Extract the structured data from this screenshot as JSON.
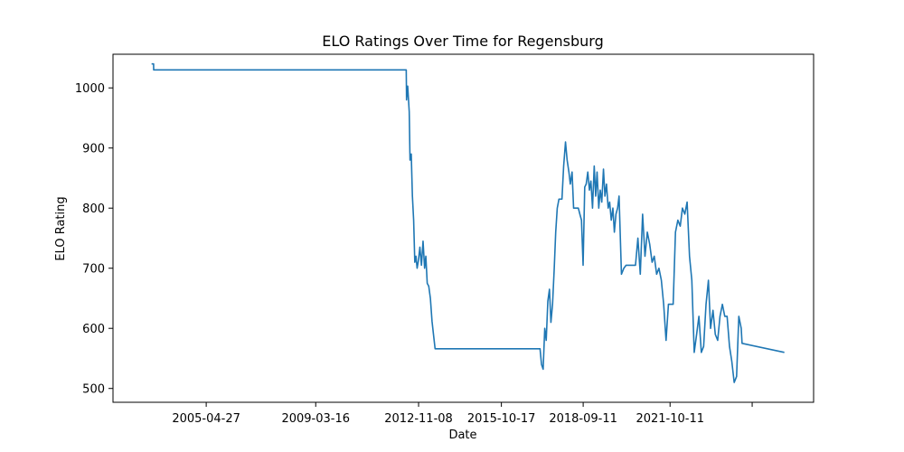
{
  "chart_data": {
    "type": "line",
    "title": "ELO Ratings Over Time for Regensburg",
    "xlabel": "Date",
    "ylabel": "ELO Rating",
    "x_ticks": [
      "2005-04-27",
      "2009-03-16",
      "2012-11-08",
      "2015-10-17",
      "2018-09-11",
      "2021-10-11",
      ""
    ],
    "x_tick_dates": [
      "2005-04-27",
      "2009-03-16",
      "2012-11-08",
      "2015-10-17",
      "2018-09-11",
      "2021-10-11",
      "2024-09-09"
    ],
    "xlim": [
      "2002-01-05",
      "2026-11-14"
    ],
    "y_ticks": [
      500,
      600,
      700,
      800,
      900,
      1000
    ],
    "ylim": [
      477,
      1056
    ],
    "grid": false,
    "legend": "none",
    "series": [
      {
        "color": "#1f77b4",
        "x": [
          "2003-05-20",
          "2003-06-15",
          "2003-06-16",
          "2012-06-01",
          "2012-06-05",
          "2012-06-20",
          "2012-07-10",
          "2012-07-20",
          "2012-08-05",
          "2012-08-20",
          "2012-09-05",
          "2012-09-20",
          "2012-10-05",
          "2012-10-20",
          "2012-11-05",
          "2012-11-25",
          "2012-12-15",
          "2013-01-05",
          "2013-01-25",
          "2013-02-10",
          "2013-02-28",
          "2013-03-20",
          "2013-04-10",
          "2013-05-01",
          "2013-05-20",
          "2013-06-10",
          "2013-07-01",
          "2013-07-20",
          "2013-08-10",
          "2013-09-01",
          "2013-09-20",
          "2013-10-10",
          "2017-03-01",
          "2017-03-20",
          "2017-04-10",
          "2017-05-01",
          "2017-05-20",
          "2017-06-10",
          "2017-07-01",
          "2017-07-20",
          "2017-08-10",
          "2017-09-01",
          "2017-09-20",
          "2017-10-10",
          "2017-11-01",
          "2017-11-20",
          "2017-12-10",
          "2018-01-01",
          "2018-01-25",
          "2018-02-15",
          "2018-03-10",
          "2018-03-28",
          "2018-04-20",
          "2018-05-10",
          "2018-05-30",
          "2018-06-20",
          "2018-07-10",
          "2018-07-30",
          "2018-08-20",
          "2018-09-10",
          "2018-10-01",
          "2018-10-20",
          "2018-11-10",
          "2018-12-01",
          "2018-12-20",
          "2019-01-10",
          "2019-02-01",
          "2019-02-20",
          "2019-03-10",
          "2019-04-01",
          "2019-04-20",
          "2019-05-10",
          "2019-06-01",
          "2019-06-20",
          "2019-07-10",
          "2019-08-01",
          "2019-08-20",
          "2019-09-10",
          "2019-10-01",
          "2019-10-20",
          "2019-11-10",
          "2019-12-01",
          "2019-12-20",
          "2020-01-20",
          "2020-02-20",
          "2020-03-20",
          "2020-04-20",
          "2020-05-20",
          "2020-06-20",
          "2020-07-20",
          "2020-08-20",
          "2020-09-20",
          "2020-10-20",
          "2020-11-20",
          "2020-12-20",
          "2021-01-20",
          "2021-02-20",
          "2021-03-20",
          "2021-04-20",
          "2021-05-20",
          "2021-06-20",
          "2021-07-20",
          "2021-08-20",
          "2021-09-20",
          "2021-10-20",
          "2021-11-20",
          "2021-12-20",
          "2022-01-20",
          "2022-02-20",
          "2022-03-20",
          "2022-04-20",
          "2022-05-20",
          "2022-06-20",
          "2022-07-20",
          "2022-08-20",
          "2022-09-20",
          "2022-10-20",
          "2022-11-20",
          "2022-12-20",
          "2023-01-20",
          "2023-02-20",
          "2023-03-20",
          "2023-04-20",
          "2023-05-20",
          "2023-06-20",
          "2023-07-20",
          "2023-08-20",
          "2023-09-20",
          "2023-10-20",
          "2023-11-20",
          "2023-12-20",
          "2024-01-20",
          "2024-02-20",
          "2024-03-20",
          "2024-04-20",
          "2024-05-01",
          "2025-10-31"
        ],
        "values": [
          1040,
          1040,
          1030,
          1030,
          980,
          1003,
          960,
          880,
          890,
          820,
          780,
          710,
          720,
          700,
          712,
          735,
          705,
          745,
          700,
          720,
          675,
          670,
          650,
          612,
          590,
          566,
          566,
          566,
          566,
          566,
          566,
          566,
          566,
          540,
          532,
          600,
          580,
          645,
          665,
          610,
          640,
          700,
          760,
          800,
          815,
          815,
          815,
          870,
          910,
          880,
          860,
          840,
          860,
          800,
          800,
          800,
          800,
          790,
          780,
          705,
          835,
          840,
          860,
          830,
          845,
          800,
          870,
          820,
          860,
          800,
          830,
          810,
          865,
          820,
          840,
          800,
          810,
          780,
          800,
          760,
          790,
          800,
          820,
          690,
          700,
          705,
          705,
          705,
          705,
          705,
          750,
          690,
          790,
          720,
          760,
          740,
          710,
          720,
          690,
          700,
          680,
          640,
          580,
          640,
          640,
          640,
          760,
          780,
          770,
          800,
          790,
          810,
          720,
          680,
          560,
          590,
          620,
          560,
          570,
          640,
          680,
          600,
          630,
          590,
          580,
          620,
          640,
          620,
          620,
          570,
          545,
          510,
          520,
          620,
          600,
          575,
          560
        ]
      }
    ]
  }
}
